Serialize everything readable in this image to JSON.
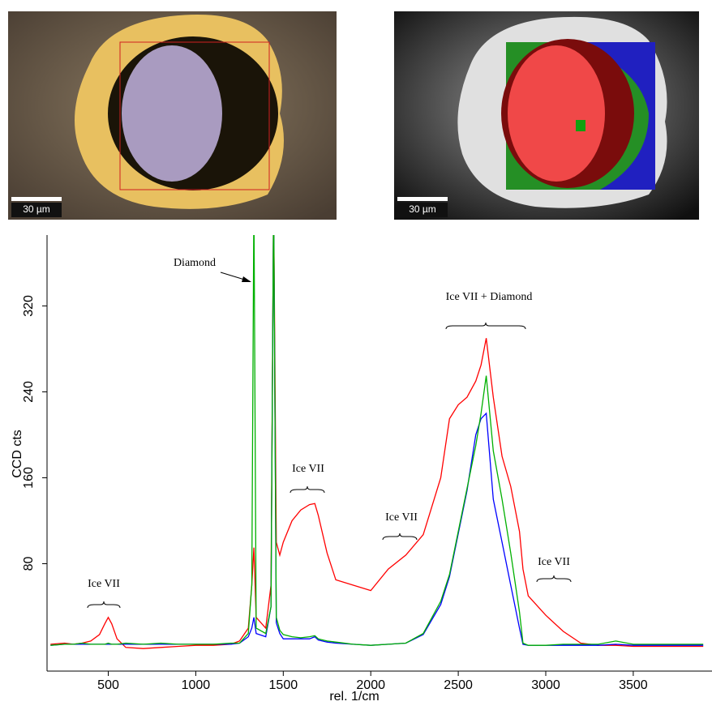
{
  "images": [
    {
      "scale_bar": "30 µm"
    },
    {
      "scale_bar": "30 µm"
    }
  ],
  "chart_data": {
    "type": "line",
    "xlabel": "rel. 1/cm",
    "ylabel": "CCD cts",
    "annotations": [
      "Diamond",
      "Ice VII",
      "Ice VII",
      "Ice VII",
      "Ice VII + Diamond",
      "Ice VII"
    ],
    "xlim": [
      150,
      3950
    ],
    "ylim": [
      -20,
      386
    ],
    "xticks": [
      500,
      1000,
      1500,
      2000,
      2500,
      3000,
      3500
    ],
    "yticks": [
      80,
      160,
      240,
      320
    ],
    "x": [
      170,
      250,
      300,
      350,
      400,
      450,
      480,
      500,
      520,
      550,
      600,
      700,
      800,
      900,
      1000,
      1100,
      1200,
      1250,
      1300,
      1320,
      1332,
      1345,
      1400,
      1430,
      1445,
      1460,
      1480,
      1500,
      1550,
      1600,
      1650,
      1680,
      1700,
      1750,
      1800,
      1900,
      2000,
      2100,
      2200,
      2300,
      2400,
      2450,
      2500,
      2550,
      2600,
      2630,
      2660,
      2700,
      2750,
      2800,
      2850,
      2870,
      2900,
      3000,
      3100,
      3200,
      3300,
      3400,
      3500,
      3600,
      3700,
      3800,
      3900
    ],
    "series": [
      {
        "name": "red",
        "color": "#ff0000",
        "values": [
          5,
          6,
          5,
          6,
          8,
          14,
          24,
          30,
          24,
          10,
          2,
          1,
          2,
          3,
          4,
          4,
          5,
          8,
          20,
          60,
          95,
          30,
          20,
          60,
          420,
          100,
          88,
          100,
          120,
          130,
          135,
          136,
          125,
          90,
          65,
          60,
          55,
          75,
          88,
          107,
          160,
          215,
          228,
          235,
          250,
          265,
          290,
          235,
          180,
          152,
          110,
          75,
          50,
          32,
          17,
          6,
          4,
          4,
          3,
          3,
          3,
          3,
          3
        ]
      },
      {
        "name": "blue",
        "color": "#0000ff",
        "values": [
          4,
          5,
          5,
          5,
          5,
          5,
          5,
          5,
          5,
          5,
          5,
          5,
          5,
          5,
          5,
          5,
          5,
          6,
          12,
          20,
          30,
          15,
          12,
          40,
          420,
          25,
          15,
          10,
          10,
          10,
          10,
          12,
          9,
          7,
          6,
          5,
          4,
          5,
          6,
          14,
          42,
          68,
          108,
          148,
          200,
          215,
          220,
          140,
          100,
          60,
          20,
          5,
          4,
          4,
          4,
          4,
          4,
          5,
          4,
          4,
          4,
          4,
          4
        ]
      },
      {
        "name": "green",
        "color": "#00b000",
        "values": [
          4,
          5,
          5,
          6,
          5,
          5,
          5,
          6,
          5,
          5,
          6,
          5,
          6,
          5,
          5,
          5,
          6,
          6,
          15,
          60,
          420,
          20,
          15,
          40,
          420,
          30,
          18,
          14,
          12,
          11,
          12,
          13,
          10,
          8,
          7,
          5,
          4,
          5,
          6,
          15,
          45,
          70,
          110,
          150,
          190,
          220,
          255,
          185,
          140,
          90,
          35,
          6,
          4,
          4,
          5,
          5,
          5,
          8,
          5,
          5,
          5,
          5,
          5
        ]
      }
    ]
  }
}
